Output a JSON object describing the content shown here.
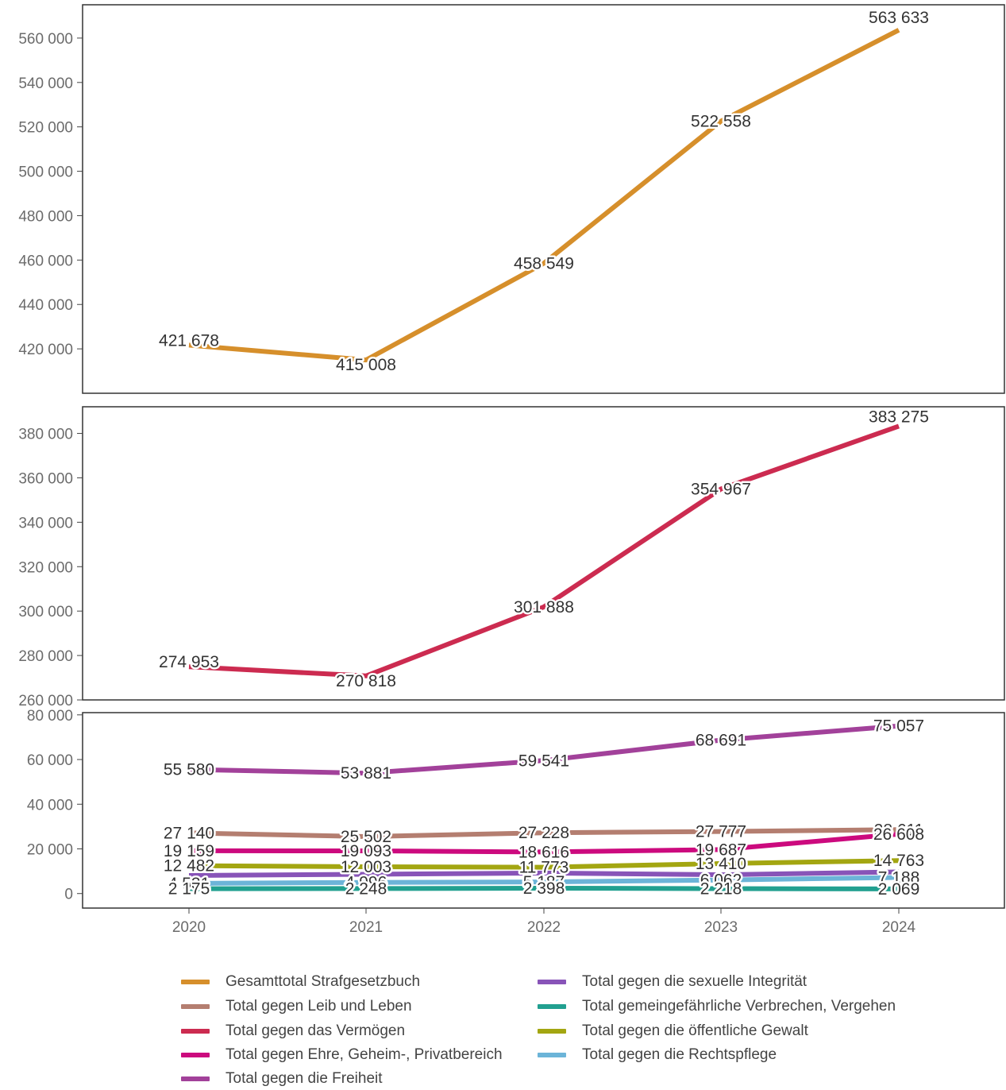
{
  "chart_data": [
    {
      "type": "line",
      "x": [
        "2020",
        "2021",
        "2022",
        "2023",
        "2024"
      ],
      "ylim": [
        400000,
        575000
      ],
      "y_ticks": [
        "420 000",
        "440 000",
        "460 000",
        "480 000",
        "500 000",
        "520 000",
        "540 000",
        "560 000"
      ],
      "series": [
        {
          "name": "Gesamttotal Strafgesetzbuch",
          "color": "#D68F2B",
          "values": [
            421678,
            415008,
            458549,
            522558,
            563633
          ],
          "labels": [
            "421 678",
            "415 008",
            "458 549",
            "522 558",
            "563 633"
          ]
        }
      ]
    },
    {
      "type": "line",
      "x": [
        "2020",
        "2021",
        "2022",
        "2023",
        "2024"
      ],
      "ylim": [
        260000,
        392000
      ],
      "y_ticks": [
        "260 000",
        "280 000",
        "300 000",
        "320 000",
        "340 000",
        "360 000",
        "380 000"
      ],
      "series": [
        {
          "name": "Total gegen das Vermögen",
          "color": "#CC2B50",
          "values": [
            274953,
            270818,
            301888,
            354967,
            383275
          ],
          "labels": [
            "274 953",
            "270 818",
            "301 888",
            "354 967",
            "383 275"
          ]
        }
      ]
    },
    {
      "type": "line",
      "x": [
        "2020",
        "2021",
        "2022",
        "2023",
        "2024"
      ],
      "ylim": [
        -6500,
        81000
      ],
      "y_ticks": [
        "0",
        "20 000",
        "40 000",
        "60 000",
        "80 000"
      ],
      "series": [
        {
          "name": "Total gegen die Freiheit",
          "color": "#A2419A",
          "values": [
            55580,
            53881,
            59541,
            68691,
            75057
          ],
          "labels": [
            "55 580",
            "53 881",
            "59 541",
            "68 691",
            "75 057"
          ]
        },
        {
          "name": "Total gegen Leib und Leben",
          "color": "#B47E70",
          "values": [
            27140,
            25502,
            27228,
            27777,
            28611
          ],
          "labels": [
            "27 140",
            "25 502",
            "27 228",
            "27 777",
            "28 611"
          ]
        },
        {
          "name": "Total gegen Ehre, Geheim-, Privatbereich",
          "color": "#CC0A7E",
          "values": [
            19159,
            19093,
            18616,
            19687,
            26608
          ],
          "labels": [
            "19 159",
            "19 093",
            "18 616",
            "19 687",
            "26 608"
          ]
        },
        {
          "name": "Total gegen die öffentliche Gewalt",
          "color": "#A3A611",
          "values": [
            12482,
            12003,
            11773,
            13410,
            14763
          ],
          "labels": [
            "12 482",
            "12 003",
            "11 773",
            "13 410",
            "14 763"
          ]
        },
        {
          "name": "Total gegen die sexuelle Integrität",
          "color": "#8854B8",
          "values": [
            8100,
            8600,
            9200,
            8400,
            9700
          ],
          "labels": [
            "",
            "",
            "",
            "",
            ""
          ]
        },
        {
          "name": "Total gegen die Rechtspflege",
          "color": "#6CB4D8",
          "values": [
            4531,
            4996,
            5187,
            6062,
            7188
          ],
          "labels": [
            "4 531",
            "4 996",
            "5 187",
            "6 062",
            "7 188"
          ]
        },
        {
          "name": "Total gemeingefährliche Verbrechen, Vergehen",
          "color": "#22A090",
          "values": [
            2175,
            2248,
            2398,
            2218,
            2069
          ],
          "labels": [
            "2 175",
            "2 248",
            "2 398",
            "2 218",
            "2 069"
          ]
        }
      ]
    }
  ],
  "legend": {
    "items": [
      {
        "label": "Gesamttotal Strafgesetzbuch",
        "color": "#D68F2B"
      },
      {
        "label": "Total gegen Leib und Leben",
        "color": "#B47E70"
      },
      {
        "label": "Total gegen das Vermögen",
        "color": "#CC2B50"
      },
      {
        "label": "Total gegen Ehre, Geheim-, Privatbereich",
        "color": "#CC0A7E"
      },
      {
        "label": "Total gegen die Freiheit",
        "color": "#A2419A"
      },
      {
        "label": "Total gegen die sexuelle Integrität",
        "color": "#8854B8"
      },
      {
        "label": "Total gemeingefährliche Verbrechen, Vergehen",
        "color": "#22A090"
      },
      {
        "label": "Total gegen die öffentliche Gewalt",
        "color": "#A3A611"
      },
      {
        "label": "Total gegen die Rechtspflege",
        "color": "#6CB4D8"
      }
    ]
  }
}
